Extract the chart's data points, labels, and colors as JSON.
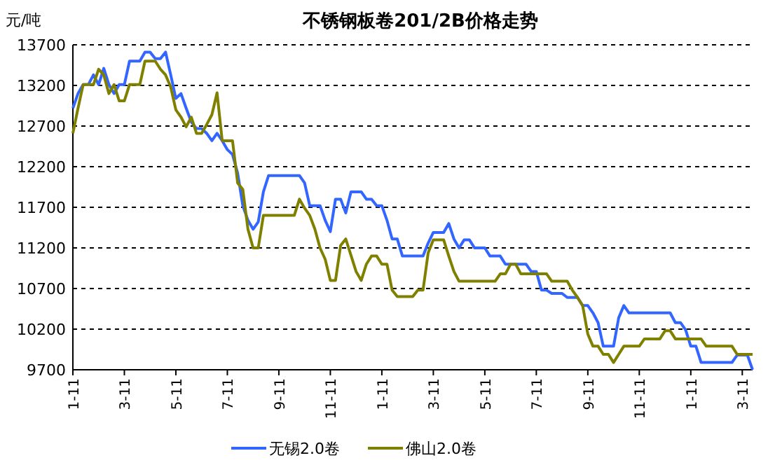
{
  "chart_data": {
    "type": "line",
    "title": "不锈钢板卷201/2B价格走势",
    "ylabel": "元/吨",
    "categories": [
      "1-11",
      null,
      null,
      null,
      null,
      null,
      null,
      null,
      null,
      null,
      "3-11",
      null,
      null,
      null,
      null,
      null,
      null,
      null,
      null,
      null,
      "5-11",
      null,
      null,
      null,
      null,
      null,
      null,
      null,
      null,
      null,
      "7-11",
      null,
      null,
      null,
      null,
      null,
      null,
      null,
      null,
      null,
      "9-11",
      null,
      null,
      null,
      null,
      null,
      null,
      null,
      null,
      null,
      "11-11",
      null,
      null,
      null,
      null,
      null,
      null,
      null,
      null,
      null,
      "1-11",
      null,
      null,
      null,
      null,
      null,
      null,
      null,
      null,
      null,
      "3-11",
      null,
      null,
      null,
      null,
      null,
      null,
      null,
      null,
      null,
      "5-11",
      null,
      null,
      null,
      null,
      null,
      null,
      null,
      null,
      null,
      "7-11",
      null,
      null,
      null,
      null,
      null,
      null,
      null,
      null,
      null,
      "9-11",
      null,
      null,
      null,
      null,
      null,
      null,
      null,
      null,
      null,
      "11-11",
      null,
      null,
      null,
      null,
      null,
      null,
      null,
      null,
      null,
      "1-11",
      null,
      null,
      null,
      null,
      null,
      null,
      null,
      null,
      null,
      "3-11",
      null,
      null
    ],
    "ylim": [
      9700,
      13700
    ],
    "yticks": [
      9700,
      10200,
      10700,
      11200,
      11700,
      12200,
      12700,
      13200,
      13700
    ],
    "grid": "y",
    "legend": "bottom",
    "line_style": "solid",
    "marker": "none",
    "series": [
      {
        "name": "无锡2.0卷",
        "color": "#3366ff",
        "values": [
          12920,
          13100,
          13210,
          13210,
          13330,
          13210,
          13410,
          13210,
          13100,
          13210,
          13210,
          13500,
          13500,
          13500,
          13610,
          13610,
          13530,
          13530,
          13610,
          13330,
          13040,
          13100,
          12920,
          12750,
          12670,
          12670,
          12610,
          12520,
          12610,
          12520,
          12410,
          12350,
          12120,
          11720,
          11540,
          11430,
          11520,
          11890,
          12090,
          12090,
          12090,
          12090,
          12090,
          12090,
          12090,
          12000,
          11720,
          11720,
          11720,
          11540,
          11400,
          11800,
          11800,
          11630,
          11890,
          11890,
          11890,
          11800,
          11800,
          11720,
          11720,
          11540,
          11310,
          11310,
          11100,
          11100,
          11100,
          11100,
          11100,
          11260,
          11390,
          11390,
          11390,
          11500,
          11310,
          11200,
          11300,
          11300,
          11200,
          11200,
          11200,
          11100,
          11100,
          11100,
          11000,
          11000,
          11000,
          11000,
          11000,
          10910,
          10910,
          10680,
          10680,
          10640,
          10640,
          10640,
          10590,
          10590,
          10590,
          10490,
          10490,
          10400,
          10280,
          9990,
          9990,
          9990,
          10340,
          10490,
          10400,
          10400,
          10400,
          10400,
          10400,
          10400,
          10400,
          10400,
          10400,
          10280,
          10280,
          10190,
          9990,
          9990,
          9790,
          9790,
          9790,
          9790,
          9790,
          9790,
          9790,
          9880,
          9880,
          9880,
          9700
        ]
      },
      {
        "name": "佛山2.0卷",
        "color": "#808000",
        "values": [
          12610,
          12920,
          13210,
          13210,
          13210,
          13400,
          13330,
          13100,
          13210,
          13010,
          13010,
          13210,
          13210,
          13210,
          13500,
          13500,
          13500,
          13400,
          13330,
          13180,
          12900,
          12810,
          12690,
          12810,
          12610,
          12610,
          12720,
          12840,
          13110,
          12520,
          12520,
          12520,
          12000,
          11920,
          11430,
          11200,
          11200,
          11600,
          11600,
          11600,
          11600,
          11600,
          11600,
          11600,
          11800,
          11690,
          11600,
          11430,
          11200,
          11060,
          10800,
          10800,
          11230,
          11310,
          11110,
          10910,
          10800,
          11000,
          11100,
          11100,
          11000,
          11000,
          10680,
          10600,
          10600,
          10600,
          10600,
          10680,
          10680,
          11140,
          11300,
          11300,
          11300,
          11100,
          10910,
          10790,
          10790,
          10790,
          10790,
          10790,
          10790,
          10790,
          10790,
          10880,
          10880,
          11000,
          11000,
          10880,
          10880,
          10880,
          10880,
          10880,
          10880,
          10790,
          10790,
          10790,
          10790,
          10680,
          10590,
          10490,
          10140,
          9990,
          9990,
          9890,
          9890,
          9790,
          9890,
          9990,
          9990,
          9990,
          9990,
          10080,
          10080,
          10080,
          10080,
          10180,
          10180,
          10080,
          10080,
          10080,
          10080,
          10080,
          10080,
          9990,
          9990,
          9990,
          9990,
          9990,
          9990,
          9890,
          9890,
          9890,
          9890
        ]
      }
    ]
  }
}
